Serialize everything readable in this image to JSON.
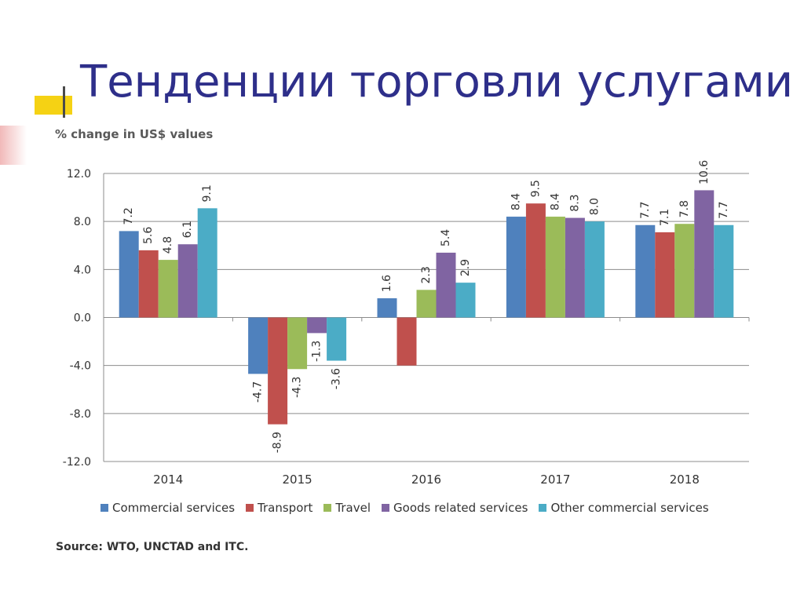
{
  "slide": {
    "title": "Тенденции торговли услугами",
    "source": "Source: WTO, UNCTAD and ITC."
  },
  "chart_data": {
    "type": "bar",
    "title": "% change in US$ values",
    "categories": [
      "2014",
      "2015",
      "2016",
      "2017",
      "2018"
    ],
    "ylim": [
      -12.0,
      12.0
    ],
    "yticks": [
      "12.0",
      "8.0",
      "4.0",
      "0.0",
      "-4.0",
      "-8.0",
      "-12.0"
    ],
    "grid": true,
    "legend_position": "bottom",
    "series": [
      {
        "name": "Commercial services",
        "color": "#4f81bd",
        "values": [
          7.2,
          -4.7,
          1.6,
          8.4,
          7.7
        ]
      },
      {
        "name": "Transport",
        "color": "#c0504d",
        "values": [
          5.6,
          -8.9,
          -4.0,
          9.5,
          7.1
        ]
      },
      {
        "name": "Travel",
        "color": "#9bbb59",
        "values": [
          4.8,
          -4.3,
          2.3,
          8.4,
          7.8
        ]
      },
      {
        "name": "Goods related services",
        "color": "#8064a2",
        "values": [
          6.1,
          -1.3,
          5.4,
          8.3,
          10.6
        ]
      },
      {
        "name": "Other commercial services",
        "color": "#4bacc6",
        "values": [
          9.1,
          -3.6,
          2.9,
          8.0,
          7.7
        ]
      }
    ],
    "missing": [
      [
        2,
        1
      ]
    ]
  }
}
